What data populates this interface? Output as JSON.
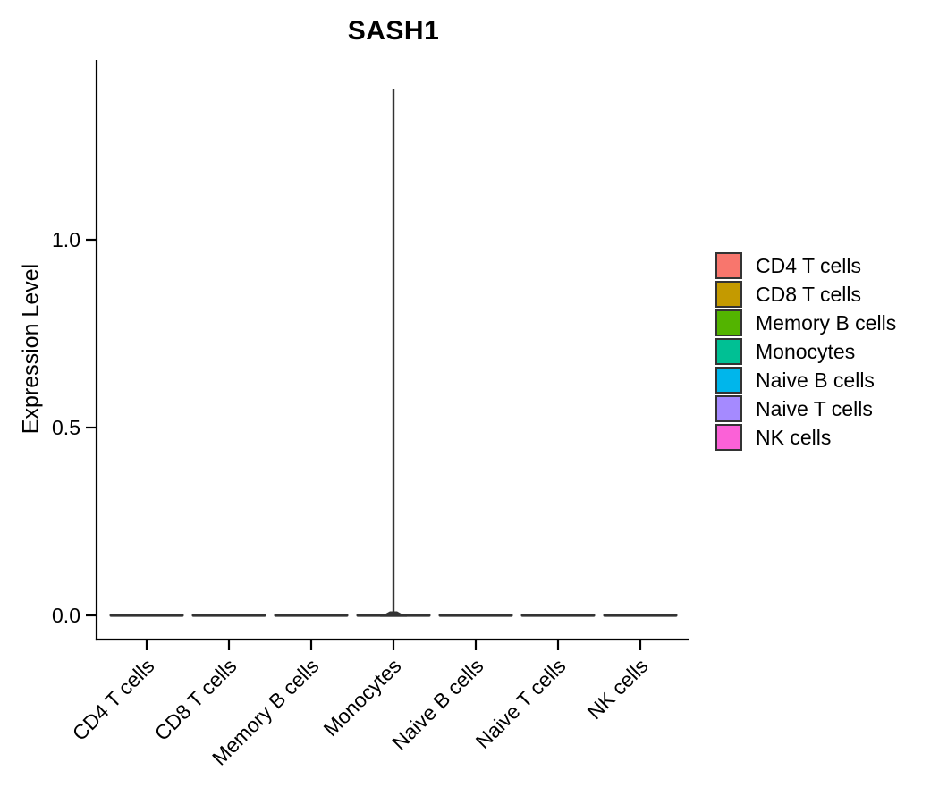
{
  "chart_data": {
    "type": "violin",
    "title": "SASH1",
    "xlabel": "",
    "ylabel": "Expression Level",
    "y_ticks": [
      0.0,
      0.5,
      1.0
    ],
    "y_tick_labels": [
      "0.0",
      "0.5",
      "1.0"
    ],
    "ylim": [
      0,
      1.45
    ],
    "grid": false,
    "legend_position": "right",
    "categories": [
      "CD4 T cells",
      "CD8 T cells",
      "Memory B cells",
      "Monocytes",
      "Naive B cells",
      "Naive T cells",
      "NK cells"
    ],
    "series": [
      {
        "label": "CD4 T cells",
        "color": "#F8766D",
        "max_expression": 0.0
      },
      {
        "label": "CD8 T cells",
        "color": "#C49A00",
        "max_expression": 0.0
      },
      {
        "label": "Memory B cells",
        "color": "#53B400",
        "max_expression": 0.0
      },
      {
        "label": "Monocytes",
        "color": "#00C094",
        "max_expression": 1.4
      },
      {
        "label": "Naive B cells",
        "color": "#00B6EB",
        "max_expression": 0.0
      },
      {
        "label": "Naive T cells",
        "color": "#A58AFF",
        "max_expression": 0.0
      },
      {
        "label": "NK cells",
        "color": "#FB61D7",
        "max_expression": 0.0
      }
    ]
  },
  "style": {
    "background": "#FFFFFF",
    "axis_color": "#000000",
    "violin_stroke": "#333333",
    "text_color": "#000000",
    "legend_swatch_border": "#333333"
  }
}
